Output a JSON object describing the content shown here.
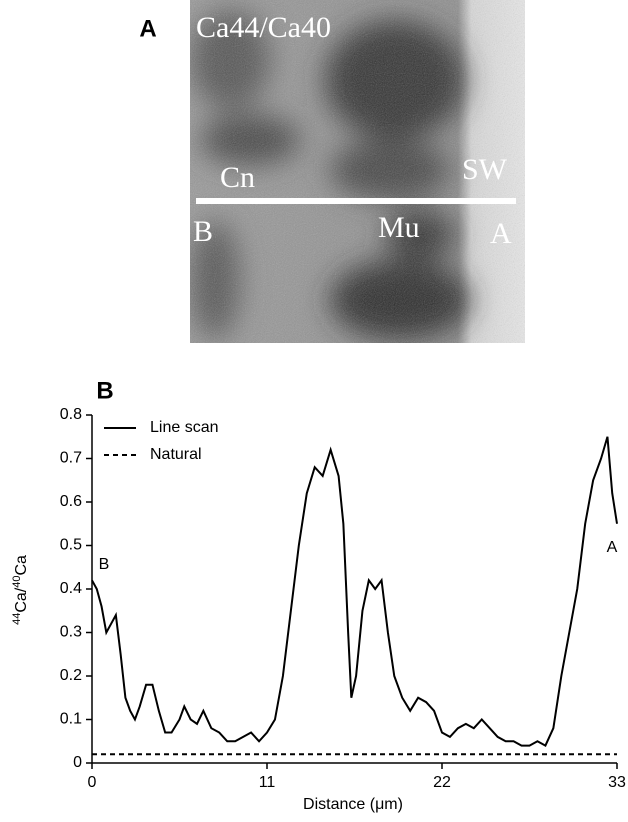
{
  "panel_a": {
    "panel_label": "A",
    "image_title": "Ca44/Ca40",
    "labels": [
      "Cn",
      "SW",
      "B",
      "Mu",
      "A"
    ]
  },
  "chart_data": {
    "type": "line",
    "panel_label": "B",
    "xlabel": "Distance (μm)",
    "ylabel_parts": [
      "44",
      "Ca/",
      "40",
      "Ca"
    ],
    "annotations": [
      "B",
      "A"
    ],
    "xlim": [
      0,
      33
    ],
    "xticks": [
      0,
      11,
      22,
      33
    ],
    "ylim": [
      0,
      0.8
    ],
    "yticks": [
      0,
      0.1,
      0.2,
      0.3,
      0.4,
      0.5,
      0.6,
      0.7,
      0.8
    ],
    "legend": "upper left",
    "series": [
      {
        "name": "Line scan",
        "color": "#000000",
        "linestyle": "solid",
        "x": [
          0,
          0.3,
          0.6,
          0.9,
          1.2,
          1.5,
          1.8,
          2.1,
          2.4,
          2.7,
          3.0,
          3.4,
          3.8,
          4.2,
          4.6,
          5.0,
          5.5,
          5.8,
          6.2,
          6.6,
          7.0,
          7.5,
          8.0,
          8.5,
          9.0,
          9.5,
          10.0,
          10.5,
          11.0,
          11.5,
          12.0,
          12.5,
          13.0,
          13.5,
          14.0,
          14.5,
          15.0,
          15.5,
          15.8,
          16.1,
          16.3,
          16.6,
          17.0,
          17.4,
          17.8,
          18.2,
          18.6,
          19.0,
          19.5,
          20.0,
          20.5,
          21.0,
          21.5,
          22.0,
          22.5,
          23.0,
          23.5,
          24.0,
          24.5,
          25.0,
          25.5,
          26.0,
          26.5,
          27.0,
          27.5,
          28.0,
          28.5,
          29.0,
          29.5,
          30.0,
          30.5,
          31.0,
          31.5,
          32.0,
          32.4,
          32.7,
          33.0
        ],
        "values": [
          0.42,
          0.4,
          0.36,
          0.3,
          0.32,
          0.34,
          0.25,
          0.15,
          0.12,
          0.1,
          0.13,
          0.18,
          0.18,
          0.12,
          0.07,
          0.07,
          0.1,
          0.13,
          0.1,
          0.09,
          0.12,
          0.08,
          0.07,
          0.05,
          0.05,
          0.06,
          0.07,
          0.05,
          0.07,
          0.1,
          0.2,
          0.35,
          0.5,
          0.62,
          0.68,
          0.66,
          0.72,
          0.66,
          0.55,
          0.3,
          0.15,
          0.2,
          0.35,
          0.42,
          0.4,
          0.42,
          0.3,
          0.2,
          0.15,
          0.12,
          0.15,
          0.14,
          0.12,
          0.07,
          0.06,
          0.08,
          0.09,
          0.08,
          0.1,
          0.08,
          0.06,
          0.05,
          0.05,
          0.04,
          0.04,
          0.05,
          0.04,
          0.08,
          0.2,
          0.3,
          0.4,
          0.55,
          0.65,
          0.7,
          0.75,
          0.62,
          0.55
        ]
      },
      {
        "name": "Natural",
        "color": "#000000",
        "linestyle": "dashed",
        "x": [
          0,
          33
        ],
        "values": [
          0.02,
          0.02
        ]
      }
    ]
  }
}
